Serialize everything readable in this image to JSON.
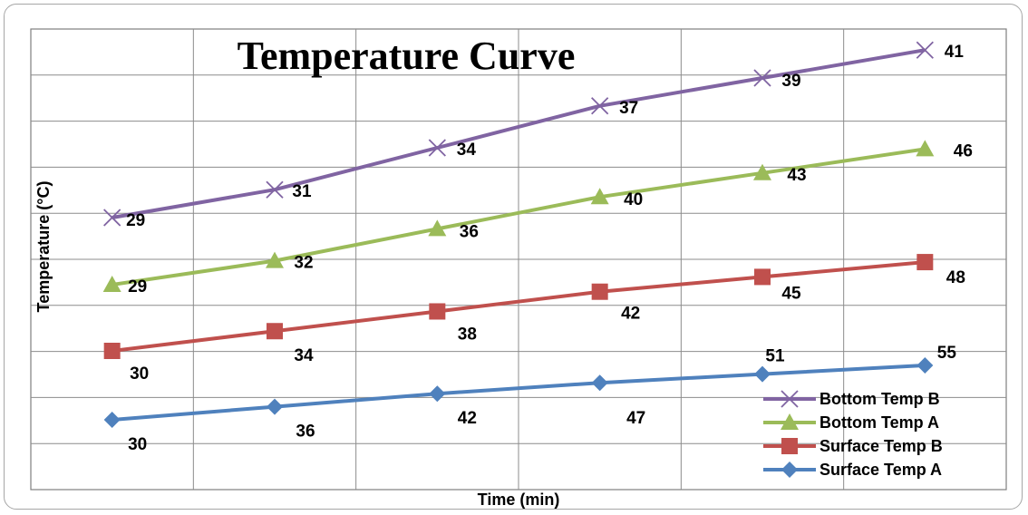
{
  "chart_data": {
    "type": "line",
    "title": "Temperature Curve",
    "xlabel": "Time (min)",
    "ylabel": "Temperature (°C)",
    "grid": true,
    "legend_position": "bottom-right",
    "series": [
      {
        "name": "Surface Temp A",
        "color": "#4f81bd",
        "marker": "diamond",
        "values": [
          30,
          36,
          42,
          47,
          51,
          55
        ]
      },
      {
        "name": "Surface Temp B",
        "color": "#c0504d",
        "marker": "square",
        "values": [
          30,
          34,
          38,
          42,
          45,
          48
        ]
      },
      {
        "name": "Bottom Temp A",
        "color": "#9bbb59",
        "marker": "triangle",
        "values": [
          29,
          32,
          36,
          40,
          43,
          46
        ]
      },
      {
        "name": "Bottom Temp B",
        "color": "#8064a2",
        "marker": "x",
        "values": [
          29,
          31,
          34,
          37,
          39,
          41
        ]
      }
    ]
  }
}
